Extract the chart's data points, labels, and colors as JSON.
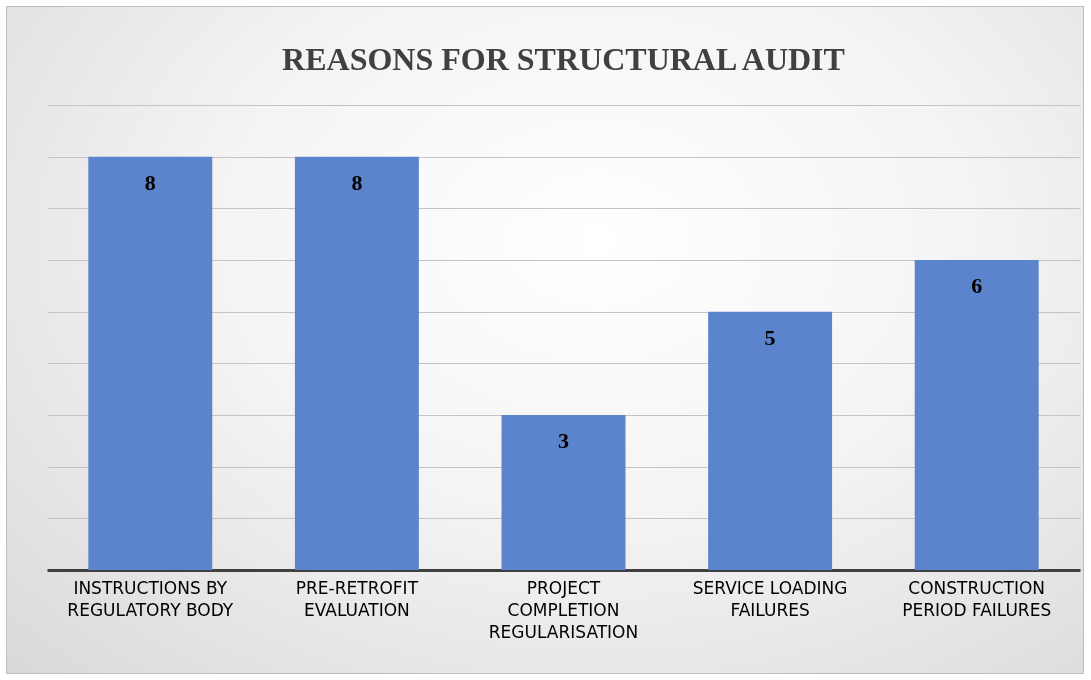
{
  "chart_data": {
    "type": "bar",
    "title": "REASONS FOR STRUCTURAL AUDIT",
    "categories": [
      "INSTRUCTIONS BY REGULATORY BODY",
      "PRE-RETROFIT EVALUATION",
      "PROJECT COMPLETION REGULARISATION",
      "SERVICE LOADING FAILURES",
      "CONSTRUCTION PERIOD FAILURES"
    ],
    "values": [
      8,
      8,
      3,
      5,
      6
    ],
    "color": "#5b84cc",
    "ylim": [
      0,
      9
    ],
    "yticks": [
      {
        "value": 0,
        "label": null
      },
      {
        "value": 1,
        "label": null
      },
      {
        "value": 2,
        "label": null
      },
      {
        "value": 3,
        "label": null
      },
      {
        "value": 4,
        "label": null
      },
      {
        "value": 5,
        "label": null
      },
      {
        "value": 6,
        "label": null
      },
      {
        "value": 7,
        "label": null
      },
      {
        "value": 8,
        "label": null
      },
      {
        "value": 9,
        "label": null
      }
    ],
    "grid": "y",
    "tick_labels": "x",
    "data_labels": true
  }
}
